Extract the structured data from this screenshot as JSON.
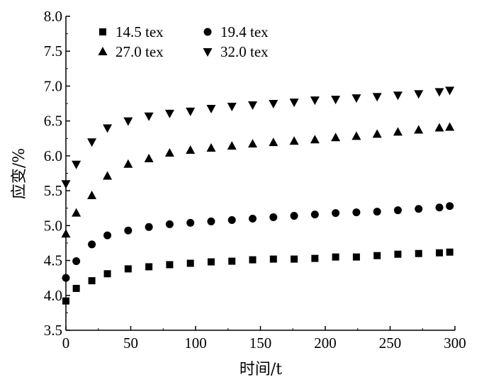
{
  "chart_data": {
    "type": "scatter",
    "xlabel": "时间/t",
    "ylabel": "应变/%",
    "xlim": [
      0,
      300
    ],
    "ylim": [
      3.5,
      8.0
    ],
    "xticks": [
      "0",
      "50",
      "100",
      "150",
      "200",
      "250",
      "300"
    ],
    "yticks": [
      "3.5",
      "4.0",
      "4.5",
      "5.0",
      "5.5",
      "6.0",
      "6.5",
      "7.0",
      "7.5",
      "8.0"
    ],
    "legend_position": "top-left, two columns",
    "grid": false,
    "x": [
      0,
      8,
      20,
      32,
      48,
      64,
      80,
      96,
      112,
      128,
      144,
      160,
      176,
      192,
      208,
      224,
      240,
      256,
      272,
      288,
      296
    ],
    "series": [
      {
        "name": "14.5 tex",
        "marker": "square",
        "values": [
          3.92,
          4.1,
          4.21,
          4.31,
          4.38,
          4.41,
          4.44,
          4.46,
          4.48,
          4.49,
          4.51,
          4.52,
          4.52,
          4.53,
          4.55,
          4.55,
          4.57,
          4.59,
          4.6,
          4.61,
          4.62
        ]
      },
      {
        "name": "19.4 tex",
        "marker": "circle",
        "values": [
          4.25,
          4.49,
          4.73,
          4.86,
          4.93,
          4.98,
          5.02,
          5.04,
          5.06,
          5.08,
          5.1,
          5.12,
          5.14,
          5.16,
          5.18,
          5.19,
          5.2,
          5.22,
          5.24,
          5.26,
          5.28
        ]
      },
      {
        "name": "27.0 tex",
        "marker": "triangle-up",
        "values": [
          4.88,
          5.18,
          5.43,
          5.71,
          5.88,
          5.96,
          6.04,
          6.08,
          6.11,
          6.14,
          6.17,
          6.19,
          6.21,
          6.23,
          6.26,
          6.28,
          6.31,
          6.34,
          6.37,
          6.4,
          6.41
        ]
      },
      {
        "name": "32.0 tex",
        "marker": "triangle-down",
        "values": [
          5.6,
          5.88,
          6.2,
          6.4,
          6.5,
          6.57,
          6.61,
          6.64,
          6.68,
          6.71,
          6.73,
          6.75,
          6.77,
          6.8,
          6.81,
          6.83,
          6.85,
          6.87,
          6.89,
          6.92,
          6.94
        ]
      }
    ]
  }
}
